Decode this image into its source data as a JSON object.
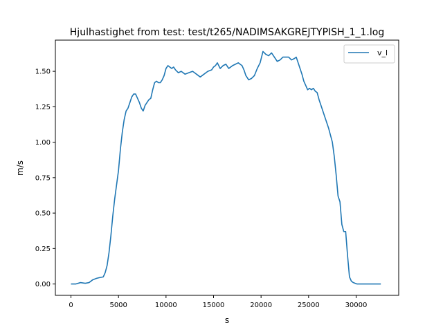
{
  "chart_data": {
    "type": "line",
    "title": "Hjulhastighet from test: test/t265/NADIMSAKGREJTYPISH_1_1.log",
    "xlabel": "s",
    "ylabel": "m/s",
    "xlim": [
      -1640,
      34480
    ],
    "ylim": [
      -0.08,
      1.72
    ],
    "xticks": [
      0,
      5000,
      10000,
      15000,
      20000,
      25000,
      30000
    ],
    "xtick_labels": [
      "0",
      "5000",
      "10000",
      "15000",
      "20000",
      "25000",
      "30000"
    ],
    "yticks": [
      0.0,
      0.25,
      0.5,
      0.75,
      1.0,
      1.25,
      1.5
    ],
    "ytick_labels": [
      "0.00",
      "0.25",
      "0.50",
      "0.75",
      "1.00",
      "1.25",
      "1.50"
    ],
    "grid": false,
    "legend_position": "upper right",
    "series": [
      {
        "name": "v_l",
        "color": "#1f77b4",
        "x": [
          0,
          500,
          1000,
          1500,
          1900,
          2300,
          2700,
          3000,
          3400,
          3600,
          3800,
          4000,
          4200,
          4400,
          4600,
          4800,
          5000,
          5200,
          5400,
          5600,
          5800,
          6000,
          6200,
          6400,
          6600,
          6800,
          7000,
          7200,
          7400,
          7600,
          7800,
          8000,
          8200,
          8400,
          8600,
          8800,
          9000,
          9200,
          9400,
          9600,
          9800,
          10000,
          10200,
          10400,
          10600,
          10800,
          11000,
          11300,
          11600,
          12000,
          12400,
          12800,
          13000,
          13200,
          13600,
          14000,
          14400,
          14800,
          15000,
          15200,
          15400,
          15700,
          16000,
          16300,
          16600,
          16800,
          17000,
          17300,
          17600,
          17800,
          18000,
          18200,
          18400,
          18700,
          19000,
          19300,
          19600,
          19900,
          20200,
          20500,
          20800,
          21100,
          21400,
          21700,
          22000,
          22300,
          22600,
          22900,
          23200,
          23500,
          23700,
          23900,
          24100,
          24300,
          24500,
          24700,
          24900,
          25100,
          25300,
          25500,
          25700,
          25900,
          26100,
          26300,
          26500,
          26700,
          26900,
          27100,
          27300,
          27500,
          27700,
          27900,
          28100,
          28300,
          28500,
          28700,
          28900,
          29100,
          29300,
          29500,
          29700,
          29900,
          30100,
          30300,
          30500,
          30700,
          30900,
          31100,
          31300,
          31400,
          31500,
          31600,
          31700,
          31800,
          31900,
          32000,
          32100,
          32200,
          32300,
          32400,
          32500,
          32600
        ],
        "y": [
          0.0,
          0.0,
          0.01,
          0.005,
          0.01,
          0.03,
          0.04,
          0.045,
          0.05,
          0.08,
          0.13,
          0.22,
          0.34,
          0.48,
          0.6,
          0.7,
          0.8,
          0.95,
          1.07,
          1.16,
          1.22,
          1.24,
          1.28,
          1.32,
          1.34,
          1.34,
          1.31,
          1.28,
          1.24,
          1.22,
          1.26,
          1.28,
          1.3,
          1.31,
          1.37,
          1.42,
          1.43,
          1.42,
          1.42,
          1.44,
          1.47,
          1.52,
          1.54,
          1.53,
          1.52,
          1.53,
          1.51,
          1.49,
          1.5,
          1.48,
          1.49,
          1.5,
          1.49,
          1.48,
          1.46,
          1.48,
          1.5,
          1.51,
          1.53,
          1.54,
          1.56,
          1.52,
          1.54,
          1.55,
          1.52,
          1.53,
          1.54,
          1.55,
          1.56,
          1.55,
          1.54,
          1.51,
          1.47,
          1.44,
          1.45,
          1.47,
          1.52,
          1.56,
          1.64,
          1.62,
          1.61,
          1.63,
          1.6,
          1.57,
          1.58,
          1.6,
          1.6,
          1.6,
          1.58,
          1.59,
          1.6,
          1.56,
          1.52,
          1.48,
          1.43,
          1.4,
          1.37,
          1.38,
          1.37,
          1.38,
          1.36,
          1.35,
          1.3,
          1.26,
          1.22,
          1.18,
          1.14,
          1.1,
          1.05,
          1.0,
          0.9,
          0.77,
          0.62,
          0.58,
          0.42,
          0.37,
          0.37,
          0.2,
          0.05,
          0.02,
          0.01,
          0.005,
          0.0,
          0.0,
          0.0,
          0.0,
          0.0,
          0.0,
          0.0,
          0.0,
          0.0,
          0.0,
          0.0,
          0.0,
          0.0,
          0.0,
          0.0,
          0.0,
          0.0,
          0.0,
          0.0,
          0.0
        ]
      }
    ]
  }
}
